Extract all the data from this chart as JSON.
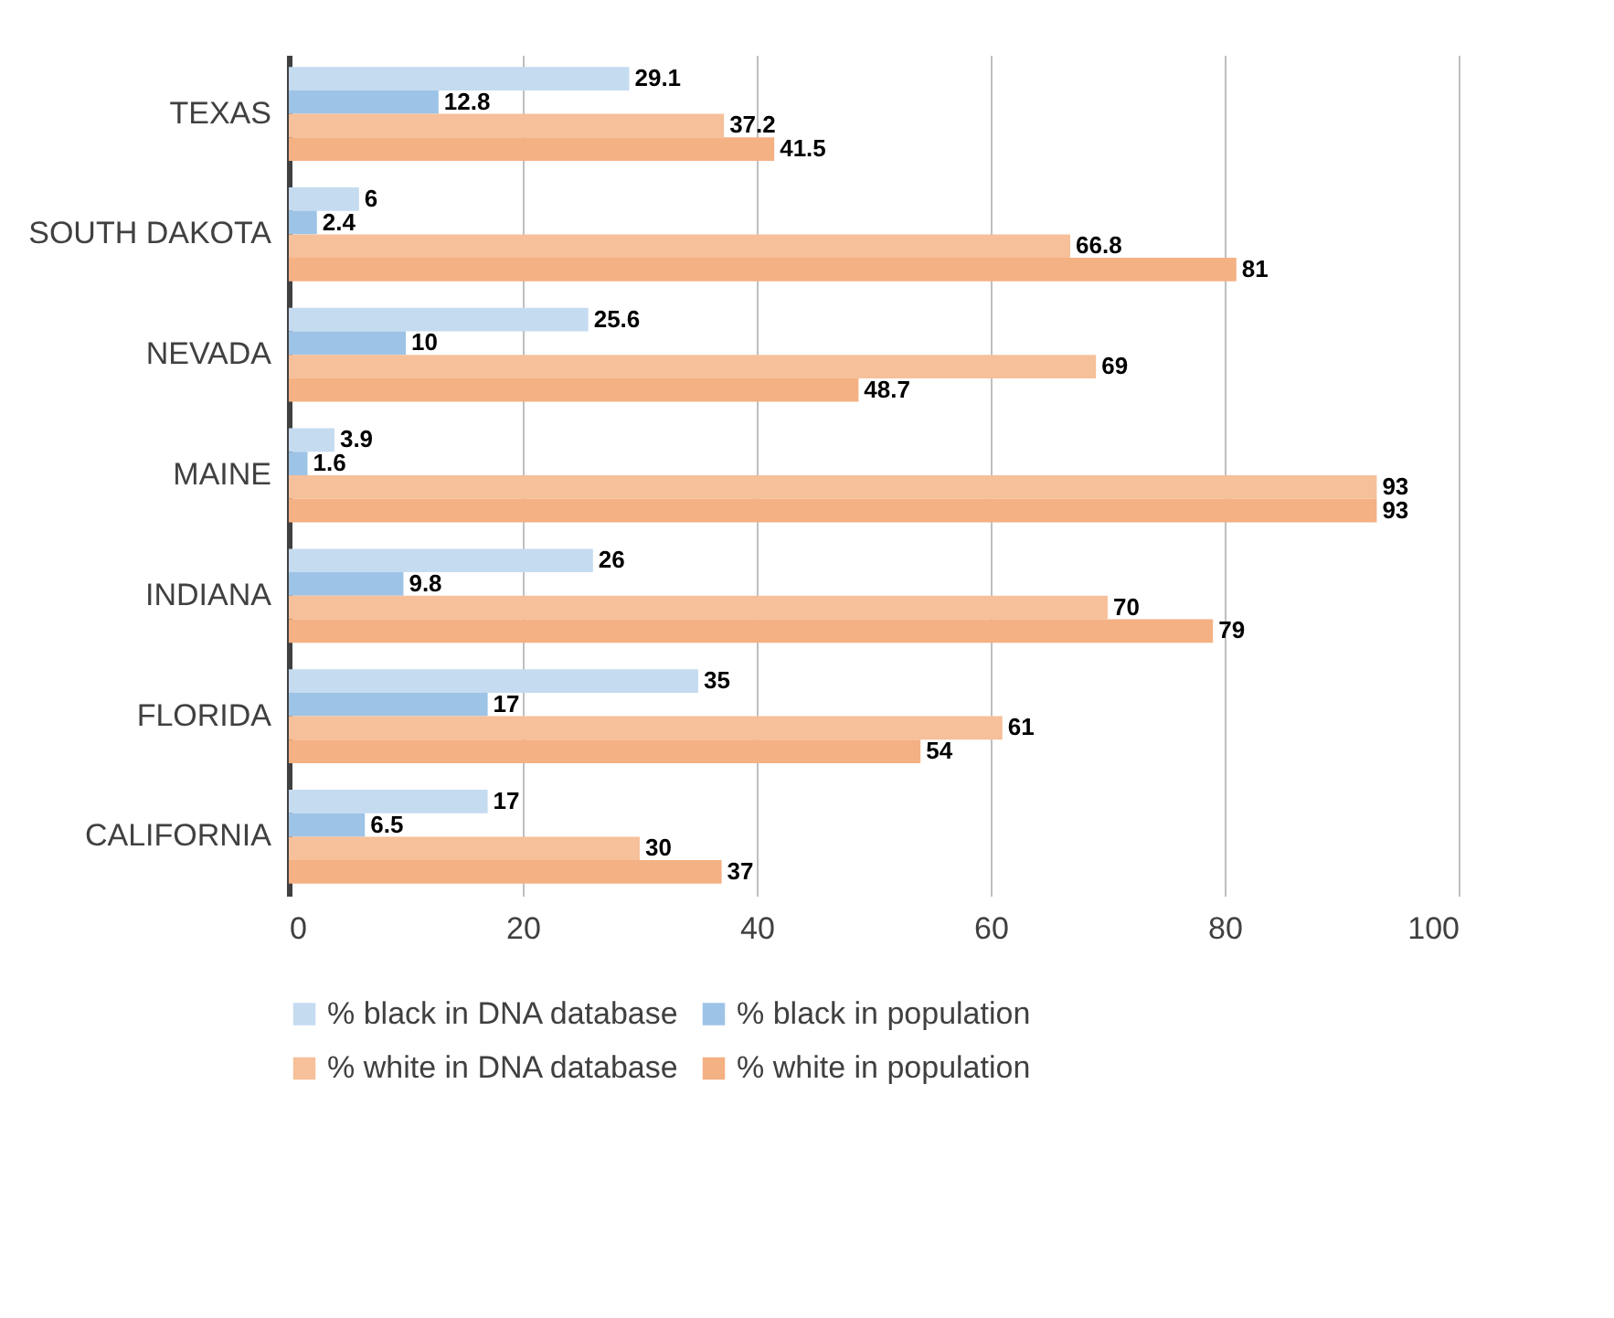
{
  "chart_data": {
    "type": "bar",
    "orientation": "horizontal",
    "categories": [
      "TEXAS",
      "SOUTH DAKOTA",
      "NEVADA",
      "MAINE",
      "INDIANA",
      "FLORIDA",
      "CALIFORNIA"
    ],
    "series": [
      {
        "name": "% black in DNA database",
        "color": "#c5dbf0",
        "values": [
          29.1,
          6,
          25.6,
          3.9,
          26,
          35,
          17
        ]
      },
      {
        "name": "% black in population",
        "color": "#9dc3e6",
        "values": [
          12.8,
          2.4,
          10,
          1.6,
          9.8,
          17,
          6.5
        ]
      },
      {
        "name": "% white in DNA database",
        "color": "#f6c09a",
        "values": [
          37.2,
          66.8,
          69,
          93,
          70,
          61,
          30
        ]
      },
      {
        "name": "% white in population",
        "color": "#f4b183",
        "values": [
          41.5,
          81,
          48.7,
          93,
          79,
          54,
          37
        ]
      }
    ],
    "xlim": [
      0,
      100
    ],
    "xticks": [
      0,
      20,
      40,
      60,
      80,
      100
    ],
    "grid": "x",
    "legend": "bottom",
    "data_labels": true
  }
}
